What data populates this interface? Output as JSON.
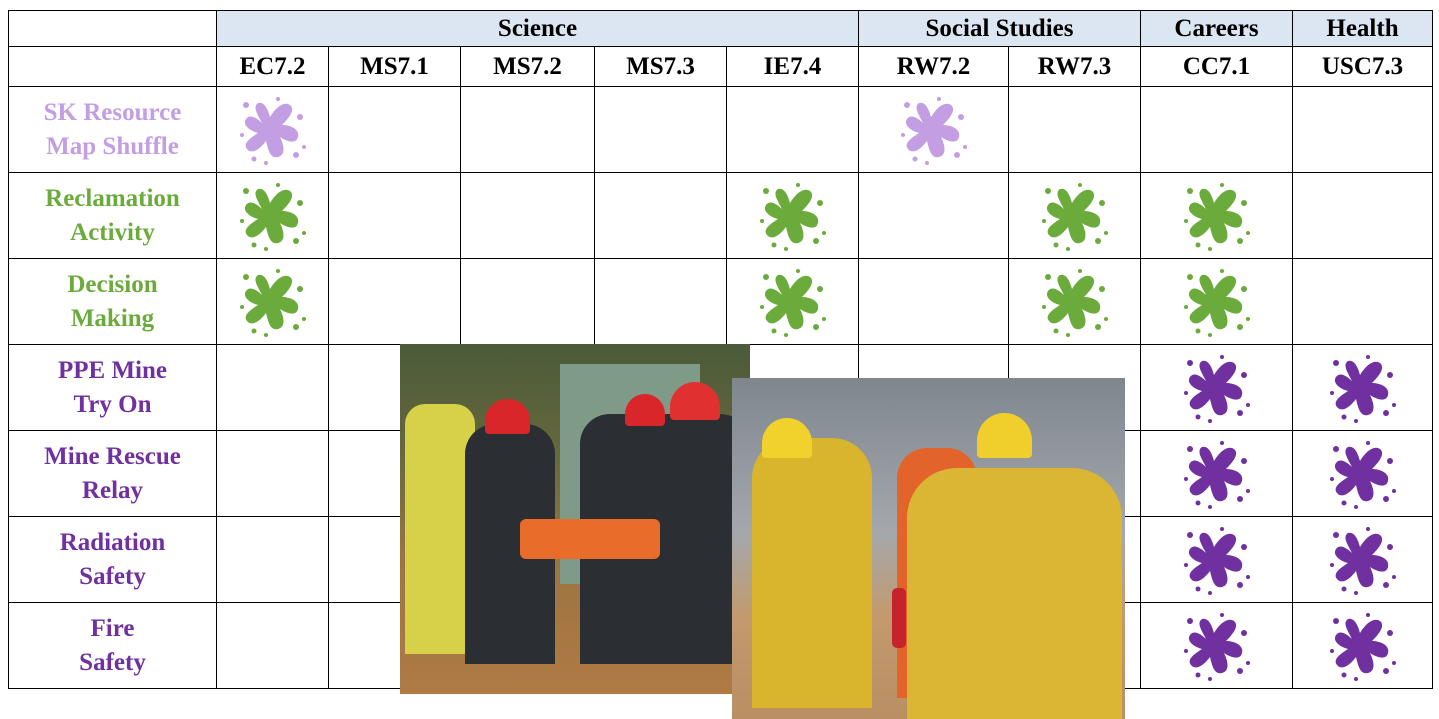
{
  "table": {
    "groups": [
      "Science",
      "Social Studies",
      "Careers",
      "Health"
    ],
    "columns": [
      "EC7.2",
      "MS7.1",
      "MS7.2",
      "MS7.3",
      "IE7.4",
      "RW7.2",
      "RW7.3",
      "CC7.1",
      "USC7.3"
    ],
    "rows": [
      {
        "label": [
          "SK Resource",
          "Map Shuffle"
        ]
      },
      {
        "label": [
          "Reclamation",
          "Activity"
        ]
      },
      {
        "label": [
          "Decision",
          "Making"
        ]
      },
      {
        "label": [
          "PPE Mine",
          "Try On"
        ]
      },
      {
        "label": [
          "Mine Rescue",
          "Relay"
        ]
      },
      {
        "label": [
          "Radiation",
          "Safety"
        ]
      },
      {
        "label": [
          "Fire",
          "Safety"
        ]
      }
    ]
  }
}
